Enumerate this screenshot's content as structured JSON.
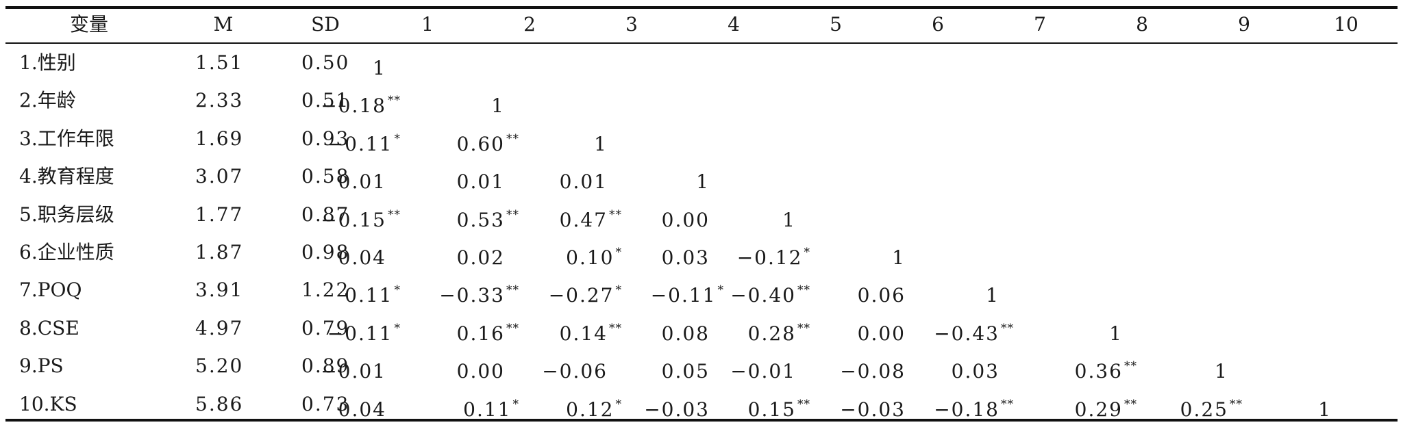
{
  "table": {
    "headers": [
      "变量",
      "M",
      "SD",
      "1",
      "2",
      "3",
      "4",
      "5",
      "6",
      "7",
      "8",
      "9",
      "10"
    ],
    "rows": [
      {
        "label": "1.性别",
        "m": "1.51",
        "sd": "0.50",
        "cells": [
          {
            "v": "1",
            "s": ""
          }
        ]
      },
      {
        "label": "2.年龄",
        "m": "2.33",
        "sd": "0.51",
        "cells": [
          {
            "v": "−0.18",
            "s": "**"
          },
          {
            "v": "1",
            "s": ""
          }
        ]
      },
      {
        "label": "3.工作年限",
        "m": "1.69",
        "sd": "0.93",
        "cells": [
          {
            "v": "−0.11",
            "s": "*"
          },
          {
            "v": "0.60",
            "s": "**"
          },
          {
            "v": "1",
            "s": ""
          }
        ]
      },
      {
        "label": "4.教育程度",
        "m": "3.07",
        "sd": "0.58",
        "cells": [
          {
            "v": "0.01",
            "s": ""
          },
          {
            "v": "0.01",
            "s": ""
          },
          {
            "v": "0.01",
            "s": ""
          },
          {
            "v": "1",
            "s": ""
          }
        ]
      },
      {
        "label": "5.职务层级",
        "m": "1.77",
        "sd": "0.87",
        "cells": [
          {
            "v": "−0.15",
            "s": "**"
          },
          {
            "v": "0.53",
            "s": "**"
          },
          {
            "v": "0.47",
            "s": "**"
          },
          {
            "v": "0.00",
            "s": ""
          },
          {
            "v": "1",
            "s": ""
          }
        ]
      },
      {
        "label": "6.企业性质",
        "m": "1.87",
        "sd": "0.98",
        "cells": [
          {
            "v": "0.04",
            "s": ""
          },
          {
            "v": "0.02",
            "s": ""
          },
          {
            "v": "0.10",
            "s": "*"
          },
          {
            "v": "0.03",
            "s": ""
          },
          {
            "v": "−0.12",
            "s": "*"
          },
          {
            "v": "1",
            "s": ""
          }
        ]
      },
      {
        "label": "7.POQ",
        "m": "3.91",
        "sd": "1.22",
        "cells": [
          {
            "v": "0.11",
            "s": "*"
          },
          {
            "v": "−0.33",
            "s": "**"
          },
          {
            "v": "−0.27",
            "s": "*"
          },
          {
            "v": "−0.11",
            "s": "*"
          },
          {
            "v": "−0.40",
            "s": "**"
          },
          {
            "v": "0.06",
            "s": ""
          },
          {
            "v": "1",
            "s": ""
          }
        ]
      },
      {
        "label": "8.CSE",
        "m": "4.97",
        "sd": "0.79",
        "cells": [
          {
            "v": "−0.11",
            "s": "*"
          },
          {
            "v": "0.16",
            "s": "**"
          },
          {
            "v": "0.14",
            "s": "**"
          },
          {
            "v": "0.08",
            "s": ""
          },
          {
            "v": "0.28",
            "s": "**"
          },
          {
            "v": "0.00",
            "s": ""
          },
          {
            "v": "−0.43",
            "s": "**"
          },
          {
            "v": "1",
            "s": ""
          }
        ]
      },
      {
        "label": "9.PS",
        "m": "5.20",
        "sd": "0.89",
        "cells": [
          {
            "v": "−0.01",
            "s": ""
          },
          {
            "v": "0.00",
            "s": ""
          },
          {
            "v": "−0.06",
            "s": ""
          },
          {
            "v": "0.05",
            "s": ""
          },
          {
            "v": "−0.01",
            "s": ""
          },
          {
            "v": "−0.08",
            "s": ""
          },
          {
            "v": "0.03",
            "s": ""
          },
          {
            "v": "0.36",
            "s": "**"
          },
          {
            "v": "1",
            "s": ""
          }
        ]
      },
      {
        "label": "10.KS",
        "m": "5.86",
        "sd": "0.73",
        "cells": [
          {
            "v": "0.04",
            "s": ""
          },
          {
            "v": "0.11",
            "s": "*"
          },
          {
            "v": "0.12",
            "s": "*"
          },
          {
            "v": "−0.03",
            "s": ""
          },
          {
            "v": "0.15",
            "s": "**"
          },
          {
            "v": "−0.03",
            "s": ""
          },
          {
            "v": "−0.18",
            "s": "**"
          },
          {
            "v": "0.29",
            "s": "**"
          },
          {
            "v": "0.25",
            "s": "**"
          },
          {
            "v": "1",
            "s": ""
          }
        ]
      }
    ]
  }
}
